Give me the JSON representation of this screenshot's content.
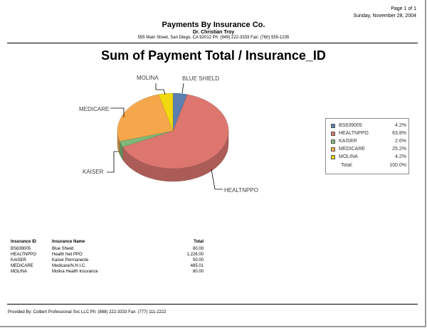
{
  "header": {
    "page_no": "Page 1 of 1",
    "date": "Sunday, November 28, 2004",
    "company": "Payments By Insurance Co.",
    "doctor": "Dr. Christian Troy",
    "address": "555 Main Street, San Diego, CA 92012 Ph: (949) 222-3333 Fax: (760) 555-1235"
  },
  "chart_data": {
    "type": "pie",
    "title": "Sum of Payment Total / Insurance_ID",
    "categories": [
      "BS639005",
      "HEALTNPPO",
      "KAISER",
      "MEDICARE",
      "MOLINA"
    ],
    "values": [
      80.0,
      1226.0,
      50.0,
      485.01,
      80.0
    ],
    "percents": [
      "4.2%",
      "63.8%",
      "2.6%",
      "25.2%",
      "4.2%"
    ],
    "slice_labels": [
      "BLUE SHIELD",
      "HEALTNPPO",
      "KAISER",
      "MEDICARE",
      "MOLINA"
    ],
    "colors": [
      "#5b7fb0",
      "#dc766f",
      "#7fb877",
      "#f6a74c",
      "#f2d90f"
    ],
    "legend_position": "right",
    "legend_total_label": "Total:",
    "legend_total_percent": "100.0%"
  },
  "table": {
    "headers": [
      "Insurance ID",
      "Insurance Name",
      "Total"
    ],
    "rows": [
      [
        "BS639005",
        "Blue Shield",
        "80.00"
      ],
      [
        "HEALTNPPO",
        "Health Net PPO",
        "1,226.00"
      ],
      [
        "KAISER",
        "Kaiser Permanente",
        "50.00"
      ],
      [
        "MEDICARE",
        "Medicare/N.H.I.C.",
        "485.01"
      ],
      [
        "MOLINA",
        "Molina Health Insurance",
        "80.00"
      ]
    ]
  },
  "footer": {
    "text": "Provided By: Colbert Professional Svc LLC Ph: (888) 222-3333 Fax: (777) 111-2222"
  }
}
